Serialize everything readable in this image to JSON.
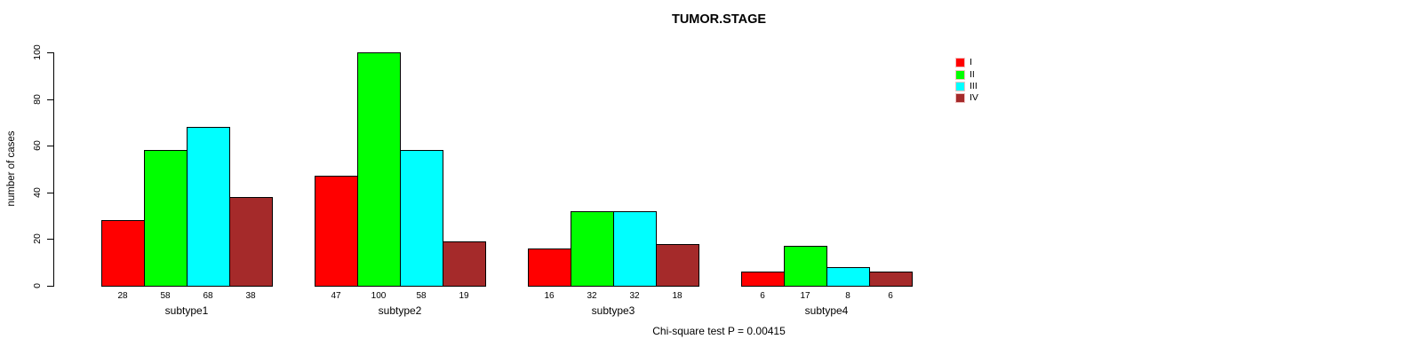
{
  "chart_data": {
    "type": "bar",
    "title": "TUMOR.STAGE",
    "xlabel": "",
    "ylabel": "number of cases",
    "ylim": [
      0,
      100
    ],
    "yticks": [
      0,
      20,
      40,
      60,
      80,
      100
    ],
    "grid": false,
    "legend_position": "top-right",
    "categories": [
      "subtype1",
      "subtype2",
      "subtype3",
      "subtype4"
    ],
    "series": [
      {
        "name": "I",
        "color": "#FF0000",
        "values": [
          28,
          47,
          16,
          6
        ]
      },
      {
        "name": "II",
        "color": "#00FF00",
        "values": [
          58,
          100,
          32,
          17
        ]
      },
      {
        "name": "III",
        "color": "#00FFFF",
        "values": [
          68,
          58,
          32,
          8
        ]
      },
      {
        "name": "IV",
        "color": "#A52A2A",
        "values": [
          38,
          19,
          18,
          6
        ]
      }
    ],
    "bar_value_labels_shown": true,
    "annotation": "Chi-square test P = 0.00415"
  }
}
